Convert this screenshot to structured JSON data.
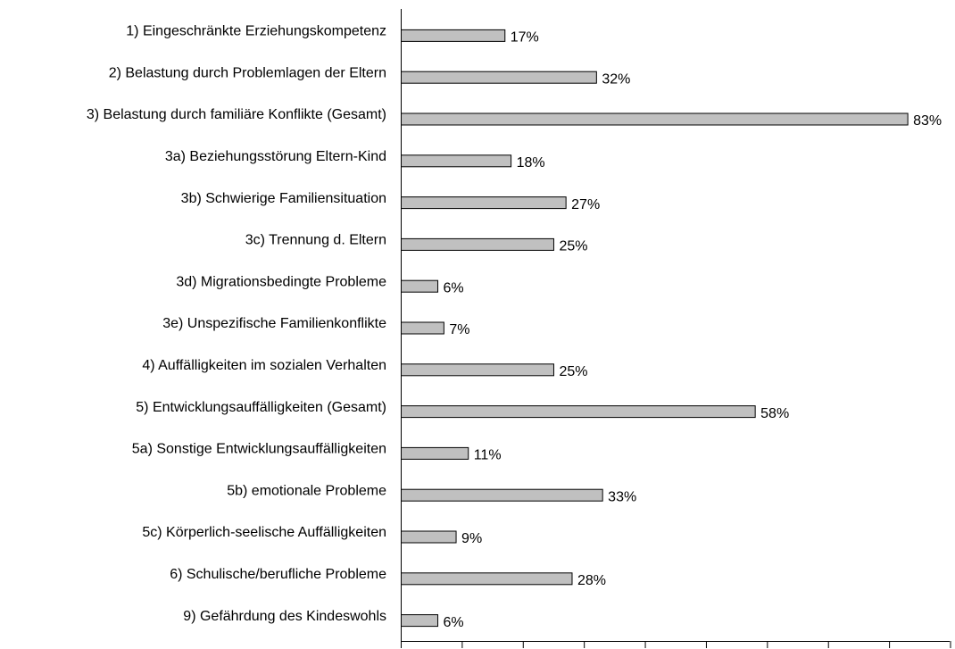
{
  "chart_data": {
    "type": "barh",
    "categories": [
      "1) Eingeschränkte Erziehungskompetenz",
      "2) Belastung durch Problemlagen der Eltern",
      "3) Belastung durch familiäre Konflikte (Gesamt)",
      "3a) Beziehungsstörung Eltern-Kind",
      "3b) Schwierige Familiensituation",
      "3c) Trennung d. Eltern",
      "3d) Migrationsbedingte Probleme",
      "3e) Unspezifische Familienkonflikte",
      "4) Auffälligkeiten im sozialen Verhalten",
      "5) Entwicklungsauffälligkeiten (Gesamt)",
      "5a) Sonstige Entwicklungsauffälligkeiten",
      "5b) emotionale Probleme",
      "5c) Körperlich-seelische Auffälligkeiten",
      "6) Schulische/berufliche Probleme",
      "9) Gefährdung des Kindeswohls"
    ],
    "values": [
      17,
      32,
      83,
      18,
      27,
      25,
      6,
      7,
      25,
      58,
      11,
      33,
      9,
      28,
      6
    ],
    "value_labels": [
      "17%",
      "32%",
      "83%",
      "18%",
      "27%",
      "25%",
      "6%",
      "7%",
      "25%",
      "58%",
      "11%",
      "33%",
      "9%",
      "28%",
      "6%"
    ],
    "color": "#c0c0c0",
    "xlim": [
      0,
      90
    ],
    "xticks": [
      0,
      10,
      20,
      30,
      40,
      50,
      60,
      70,
      80,
      90
    ]
  }
}
